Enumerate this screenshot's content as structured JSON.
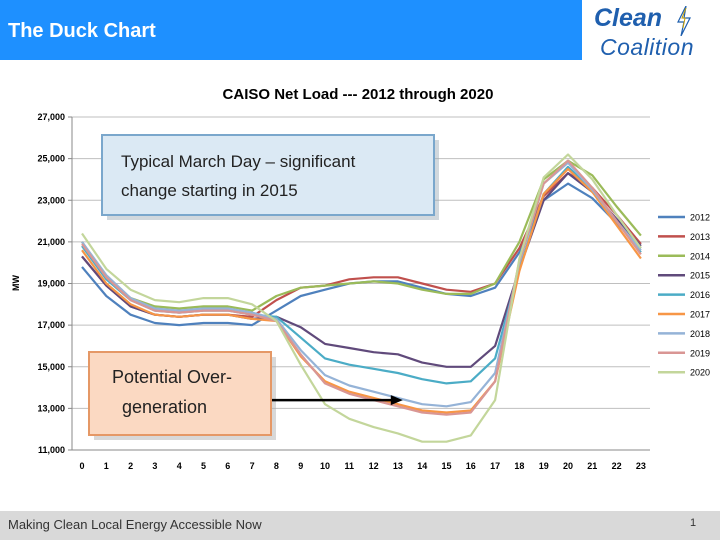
{
  "header": {
    "title": "The Duck Chart",
    "accent_color": "#1e90ff"
  },
  "logo": {
    "line1": "Clean",
    "line2": "Coalition",
    "color": "#1f5fae",
    "icon": "lightning-bolt-icon"
  },
  "footer": {
    "text": "Making Clean Local Energy Accessible Now",
    "page_number": "1"
  },
  "chart_data": {
    "type": "line",
    "title": "CAISO Net Load --- 2012 through 2020",
    "xlabel": "",
    "ylabel": "MW",
    "ylim": [
      11000,
      27000
    ],
    "yticks": [
      11000,
      13000,
      15000,
      17000,
      19000,
      21000,
      23000,
      25000,
      27000
    ],
    "ytick_labels": [
      "11,000",
      "13,000",
      "15,000",
      "17,000",
      "19,000",
      "21,000",
      "23,000",
      "25,000",
      "27,000"
    ],
    "x": [
      0,
      1,
      2,
      3,
      4,
      5,
      6,
      7,
      8,
      9,
      10,
      11,
      12,
      13,
      14,
      15,
      16,
      17,
      18,
      19,
      20,
      21,
      22,
      23
    ],
    "grid": true,
    "legend_position": "right",
    "series": [
      {
        "name": "2012",
        "color": "#4f81bd",
        "values": [
          19800,
          18400,
          17500,
          17100,
          17000,
          17100,
          17100,
          17000,
          17700,
          18400,
          18700,
          19000,
          19100,
          19100,
          18800,
          18500,
          18400,
          18800,
          20500,
          23000,
          23800,
          23100,
          21900,
          20700
        ]
      },
      {
        "name": "2013",
        "color": "#c0504d",
        "values": [
          20300,
          18900,
          17900,
          17500,
          17400,
          17500,
          17500,
          17400,
          18200,
          18800,
          18900,
          19200,
          19300,
          19300,
          19000,
          18700,
          18600,
          19000,
          20700,
          23200,
          24300,
          23600,
          22300,
          20900
        ]
      },
      {
        "name": "2014",
        "color": "#9bbb59",
        "values": [
          21000,
          19300,
          18300,
          17900,
          17800,
          17900,
          17900,
          17700,
          18400,
          18800,
          18900,
          19000,
          19100,
          19000,
          18700,
          18500,
          18500,
          19000,
          21000,
          24000,
          24900,
          24200,
          22700,
          21300
        ]
      },
      {
        "name": "2015",
        "color": "#604a7b",
        "values": [
          20300,
          18900,
          17900,
          17500,
          17400,
          17500,
          17500,
          17300,
          17400,
          16900,
          16100,
          15900,
          15700,
          15600,
          15200,
          15000,
          15000,
          16000,
          19700,
          23000,
          24300,
          23400,
          22100,
          20800
        ]
      },
      {
        "name": "2016",
        "color": "#4bacc6",
        "values": [
          20800,
          19200,
          18200,
          17700,
          17600,
          17700,
          17700,
          17500,
          17400,
          16400,
          15400,
          15100,
          14900,
          14700,
          14400,
          14200,
          14300,
          15400,
          19700,
          23300,
          24600,
          23500,
          22000,
          20500
        ]
      },
      {
        "name": "2017",
        "color": "#f79646",
        "values": [
          20600,
          19000,
          18000,
          17500,
          17400,
          17500,
          17500,
          17300,
          17200,
          15500,
          14300,
          13800,
          13500,
          13200,
          12900,
          12800,
          12900,
          14300,
          19600,
          23300,
          24500,
          23400,
          21800,
          20200
        ]
      },
      {
        "name": "2018",
        "color": "#95b3d7",
        "values": [
          21000,
          19400,
          18300,
          17800,
          17700,
          17800,
          17800,
          17600,
          17300,
          15800,
          14600,
          14100,
          13800,
          13500,
          13200,
          13100,
          13300,
          14700,
          20000,
          23800,
          24800,
          23500,
          22000,
          20600
        ]
      },
      {
        "name": "2019",
        "color": "#d99694",
        "values": [
          20900,
          19300,
          18200,
          17700,
          17600,
          17700,
          17700,
          17500,
          17200,
          15600,
          14200,
          13700,
          13400,
          13100,
          12800,
          12700,
          12800,
          14300,
          20100,
          23800,
          24900,
          23600,
          22000,
          20400
        ]
      },
      {
        "name": "2020",
        "color": "#c3d69b",
        "values": [
          21400,
          19700,
          18700,
          18200,
          18100,
          18300,
          18300,
          18000,
          17200,
          15100,
          13200,
          12500,
          12100,
          11800,
          11400,
          11400,
          11700,
          13400,
          20200,
          24100,
          25200,
          24000,
          22300,
          20700
        ]
      }
    ],
    "annotations": [
      {
        "text_lines": [
          "Typical March Day – significant",
          "change starting in 2015"
        ],
        "fill": "#dbe9f4",
        "border": "#7aa7cc"
      },
      {
        "text_lines": [
          "Potential Over-",
          "generation"
        ],
        "fill": "#fbd9c2",
        "border": "#e59866",
        "arrow_to_x": 13.2,
        "arrow_to_y": 13400
      }
    ]
  }
}
